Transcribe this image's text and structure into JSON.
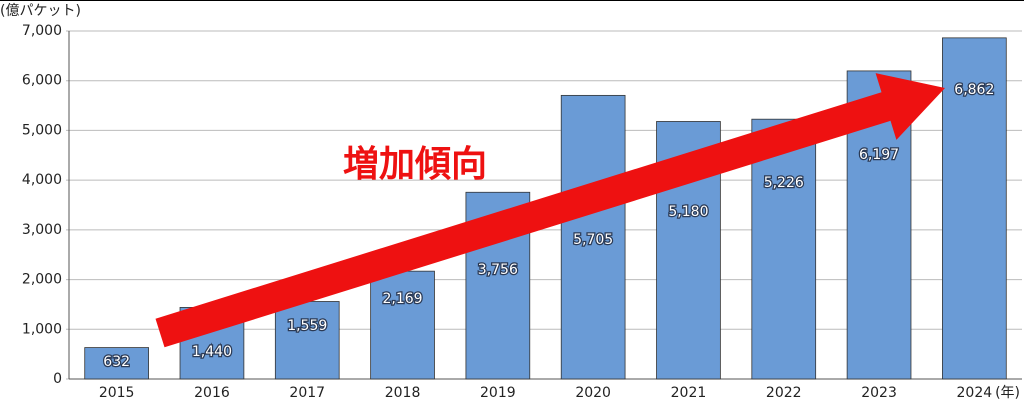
{
  "chart_data": {
    "type": "bar",
    "y_label": "(億パケット)",
    "x_unit": "(年)",
    "annotation": "増加傾向",
    "categories": [
      "2015",
      "2016",
      "2017",
      "2018",
      "2019",
      "2020",
      "2021",
      "2022",
      "2023",
      "2024"
    ],
    "values": [
      632,
      1440,
      1559,
      2169,
      3756,
      5705,
      5180,
      5226,
      6197,
      6862
    ],
    "value_labels": [
      "632",
      "1,440",
      "1,559",
      "2,169",
      "3,756",
      "5,705",
      "5,180",
      "5,226",
      "6,197",
      "6,862"
    ],
    "color": "#6a9bd6",
    "annotation_color": "#ee1111",
    "ylim": [
      0,
      7000
    ],
    "yticks": [
      0,
      {
        "value": 1000,
        "label": "1,000"
      },
      {
        "value": 2000,
        "label": "2,000"
      },
      {
        "value": 3000,
        "label": "3,000"
      },
      {
        "value": 4000,
        "label": "4,000"
      },
      {
        "value": 5000,
        "label": "5,000"
      },
      {
        "value": 6000,
        "label": "6,000"
      },
      {
        "value": 7000,
        "label": "7,000"
      }
    ],
    "grid": true
  }
}
